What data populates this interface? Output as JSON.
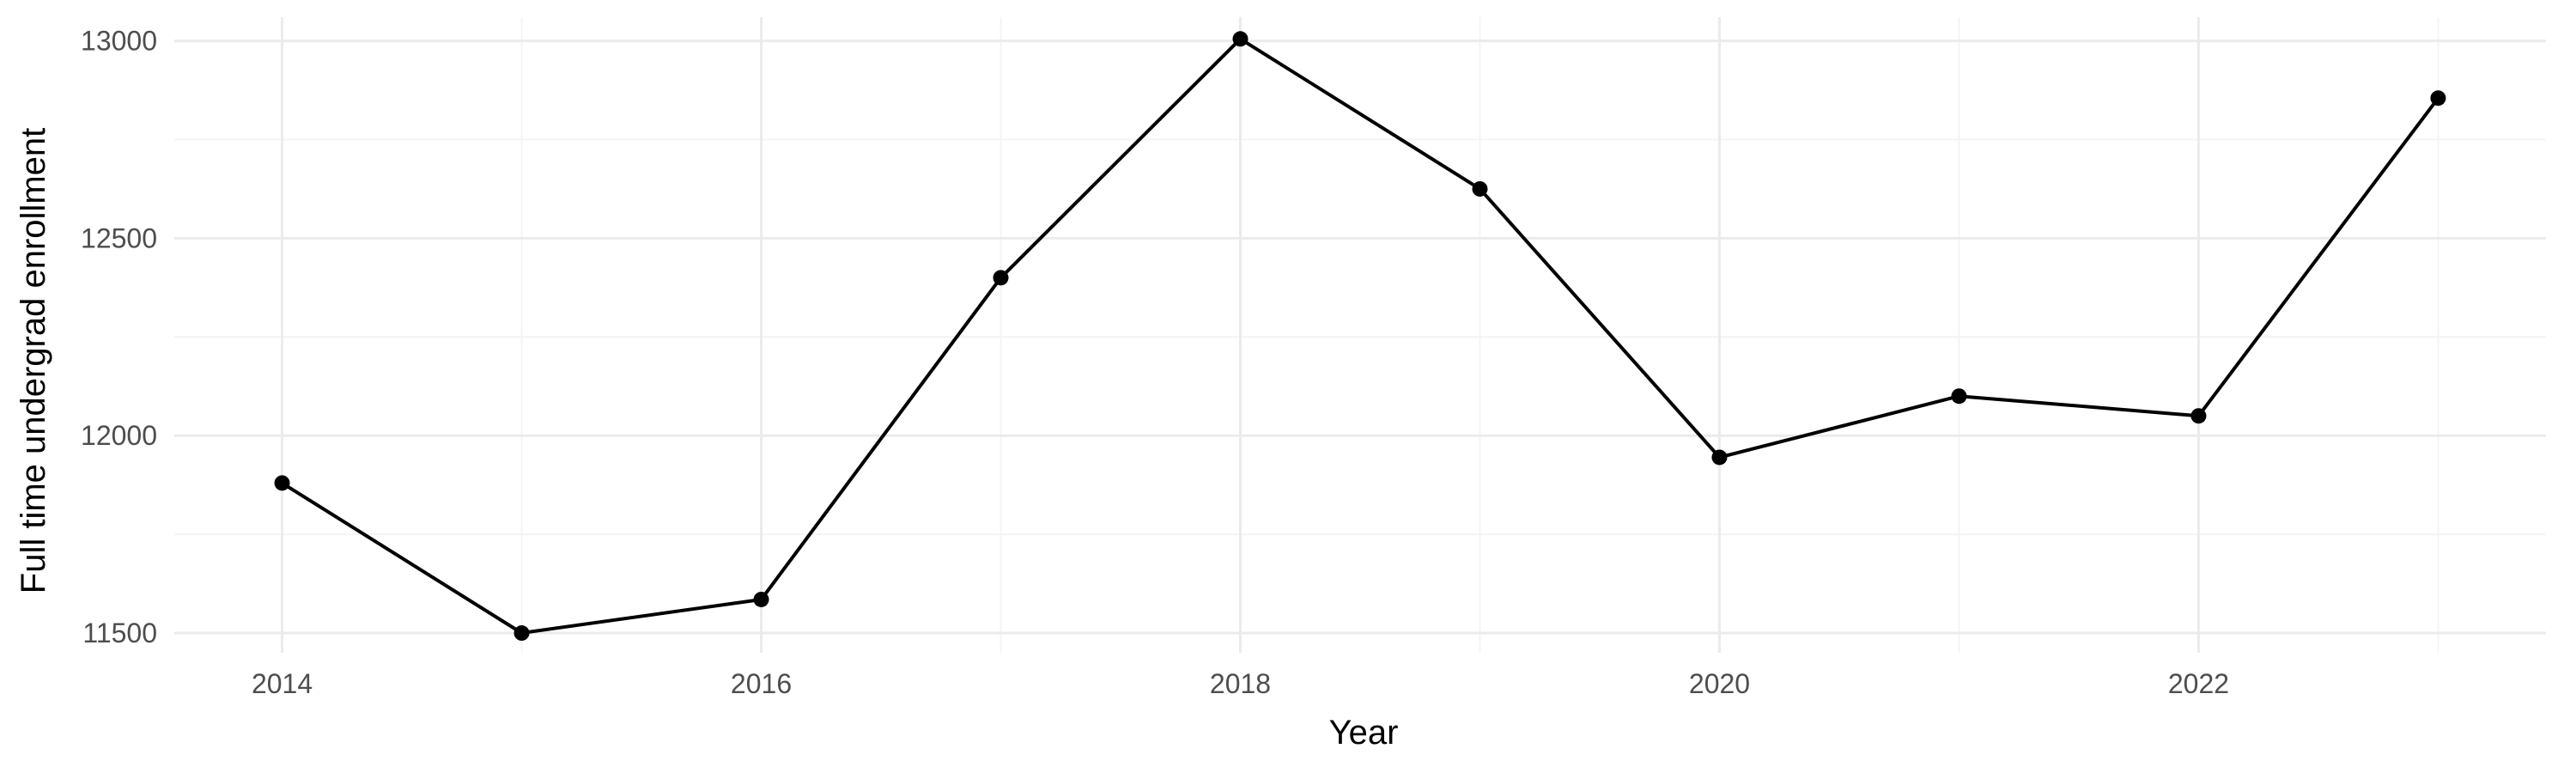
{
  "chart_data": {
    "type": "line",
    "xlabel": "Year",
    "ylabel": "Full time undergrad enrollment",
    "x": [
      2014,
      2015,
      2016,
      2017,
      2018,
      2019,
      2020,
      2021,
      2022,
      2023
    ],
    "series": [
      {
        "values": [
          11880,
          11500,
          11585,
          12400,
          13005,
          12625,
          11945,
          12100,
          12050,
          12855
        ],
        "color": "#000000"
      }
    ],
    "xlim": [
      2013.55,
      2023.45
    ],
    "ylim": [
      11450,
      13060
    ],
    "x_ticks": [
      2014,
      2016,
      2018,
      2020,
      2022
    ],
    "x_tick_labels": [
      "2014",
      "2016",
      "2018",
      "2020",
      "2022"
    ],
    "x_minor_ticks": [
      2015,
      2017,
      2019,
      2021,
      2023
    ],
    "y_ticks": [
      11500,
      12000,
      12500,
      13000
    ],
    "y_tick_labels": [
      "11500",
      "12000",
      "12500",
      "13000"
    ],
    "y_minor_ticks": [
      11750,
      12250,
      12750
    ],
    "grid": true,
    "legend": "none",
    "theme": "minimal"
  }
}
